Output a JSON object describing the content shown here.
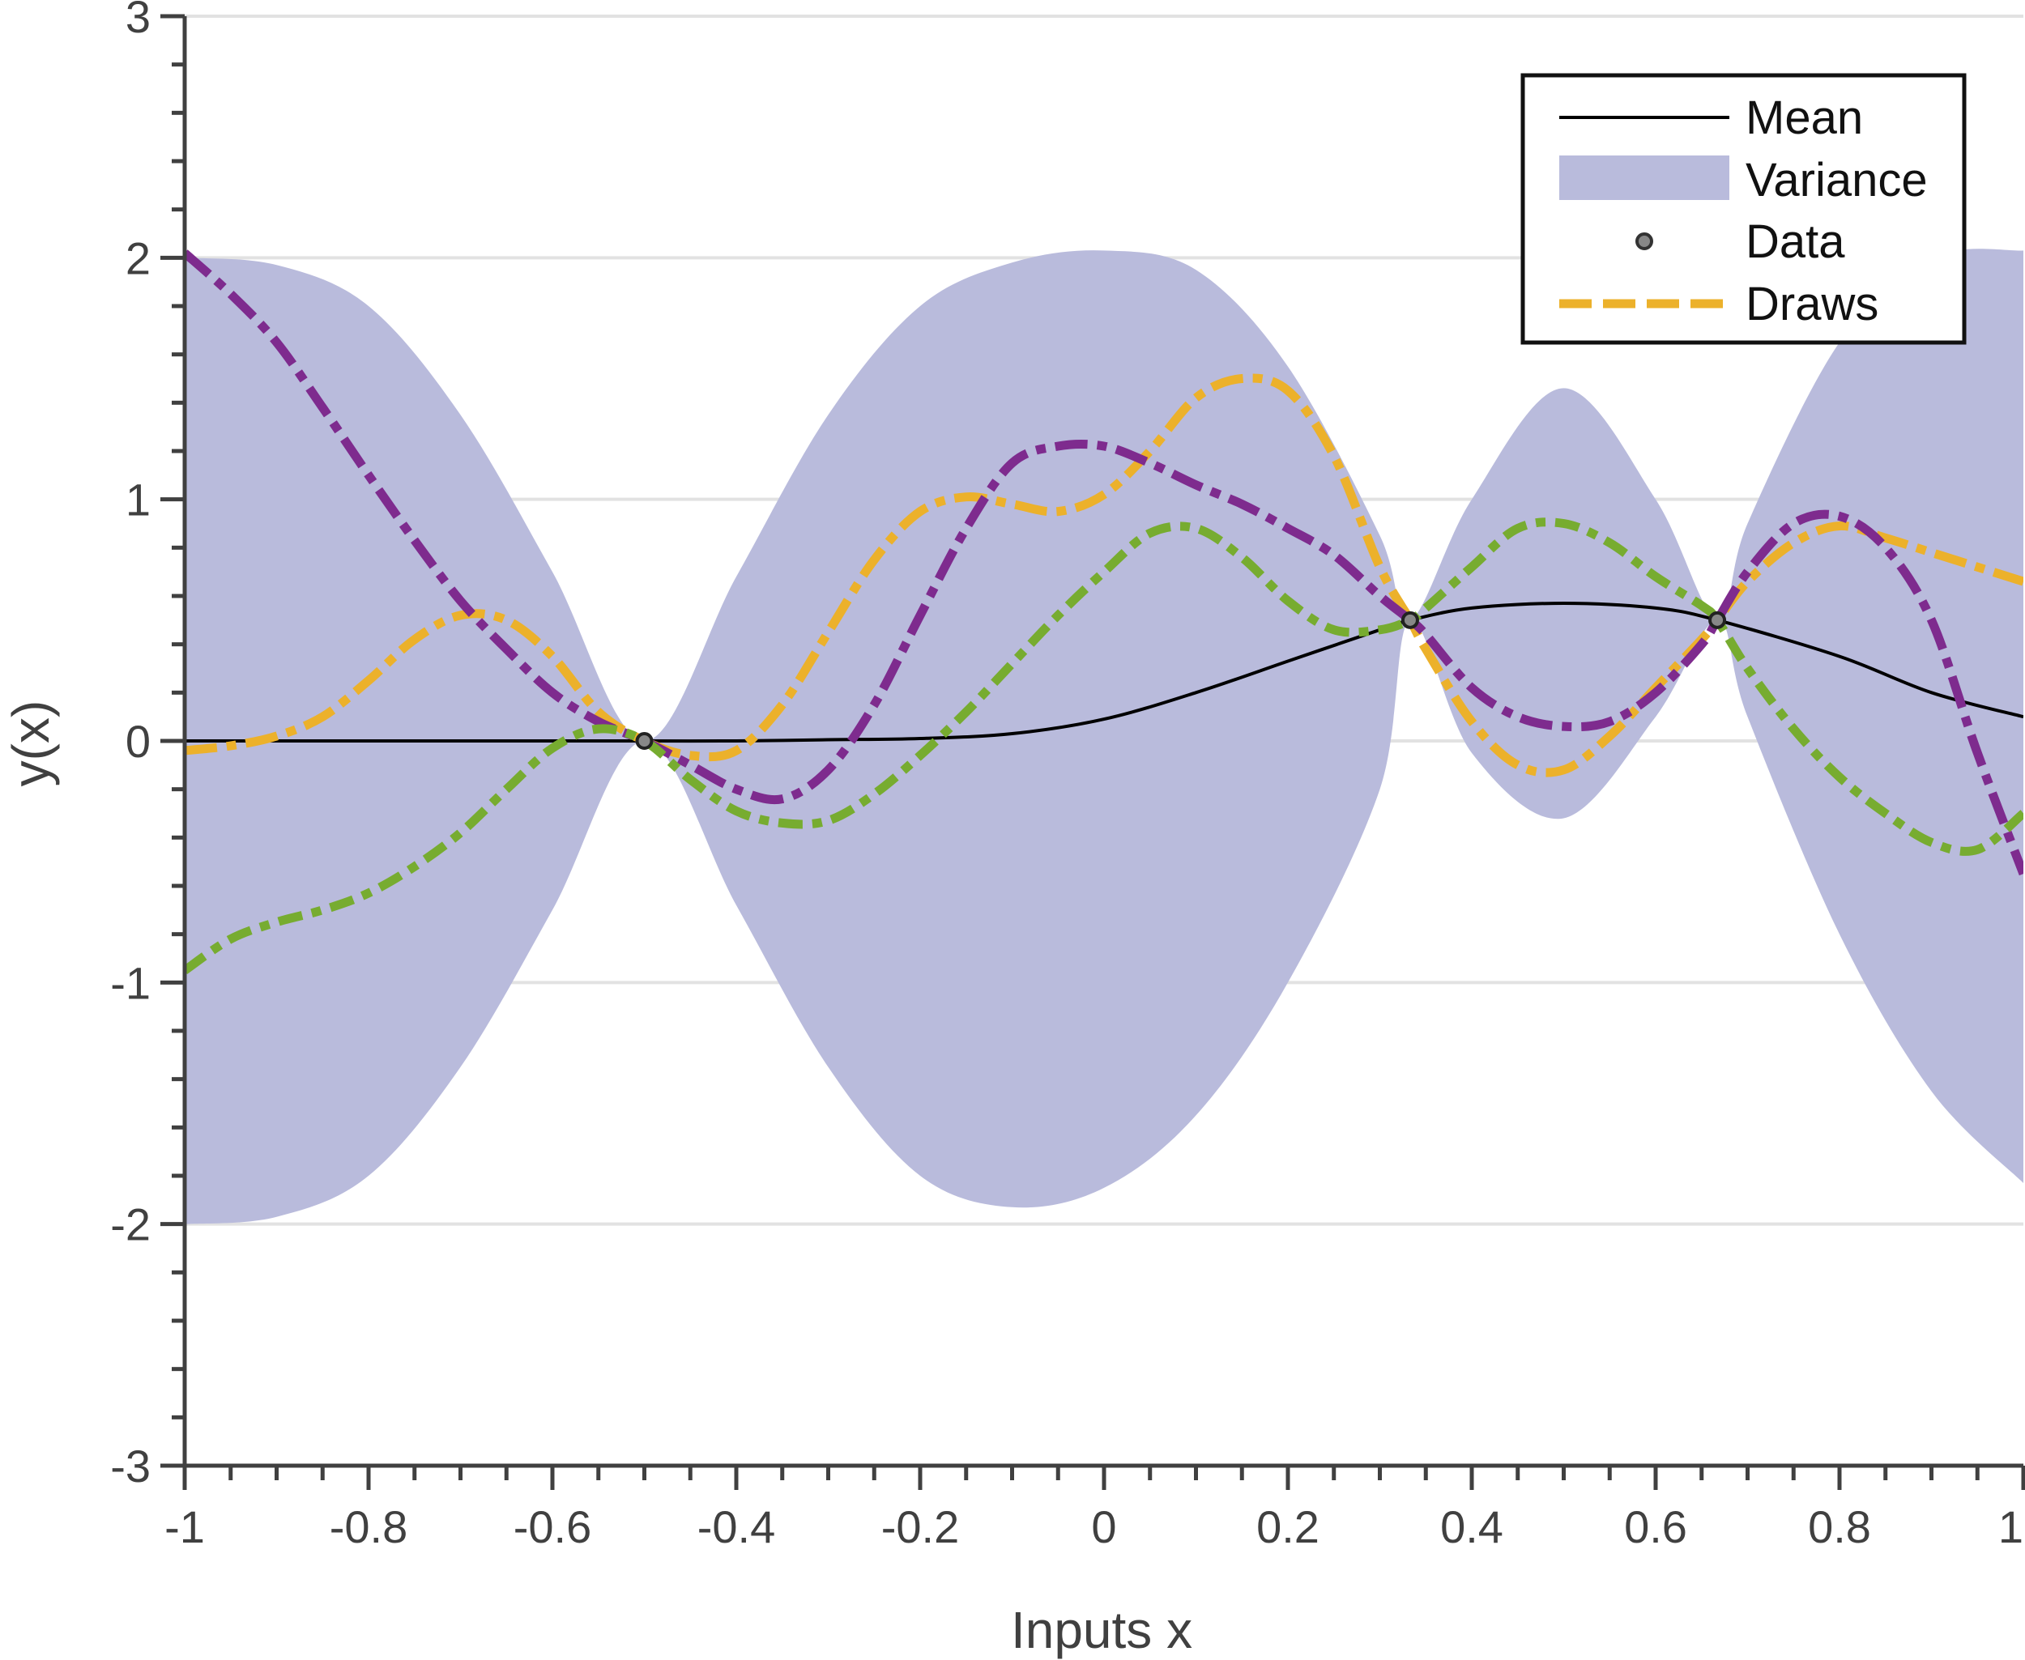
{
  "chart_data": {
    "type": "line",
    "title": "",
    "xlabel": "Inputs x",
    "ylabel": "y(x)",
    "xlim": [
      -1,
      1
    ],
    "ylim": [
      -3,
      3
    ],
    "grid": "horizontal",
    "legend_position": "top-right",
    "x_ticks": [
      -1,
      -0.8,
      -0.6,
      -0.4,
      -0.2,
      0,
      0.2,
      0.4,
      0.6,
      0.8,
      1
    ],
    "x_tick_labels": [
      "-1",
      "-0.8",
      "-0.6",
      "-0.4",
      "-0.2",
      "0",
      "0.2",
      "0.4",
      "0.6",
      "0.8",
      "1"
    ],
    "y_ticks": [
      -3,
      -2,
      -1,
      0,
      1,
      2,
      3
    ],
    "y_tick_labels": [
      "-3",
      "-2",
      "-1",
      "0",
      "1",
      "2",
      "3"
    ],
    "legend": [
      "Mean",
      "Variance",
      "Data",
      "Draws"
    ],
    "colors": {
      "variance": "#b9bbdc",
      "mean": "#000000",
      "draw_yellow": "#ecb12b",
      "draw_purple": "#7e2b8e",
      "draw_green": "#77ac30",
      "grid": "#e2e2e2",
      "axis": "#404040"
    },
    "data_points": [
      {
        "x": -0.5,
        "y": 0
      },
      {
        "x": 0.333,
        "y": 0.5
      },
      {
        "x": 0.667,
        "y": 0.5
      }
    ],
    "mean": {
      "name": "Mean",
      "x": [
        -1,
        -0.8,
        -0.6,
        -0.5,
        -0.4,
        -0.3,
        -0.2,
        -0.1,
        0,
        0.1,
        0.2,
        0.3,
        0.333,
        0.4,
        0.5,
        0.6,
        0.667,
        0.8,
        0.9,
        1
      ],
      "y": [
        0,
        0,
        0,
        0,
        0,
        0.005,
        0.01,
        0.03,
        0.09,
        0.2,
        0.33,
        0.46,
        0.5,
        0.55,
        0.57,
        0.55,
        0.5,
        0.35,
        0.2,
        0.1
      ]
    },
    "variance_band": {
      "name": "Variance",
      "x": [
        -1,
        -0.9,
        -0.8,
        -0.7,
        -0.6,
        -0.5,
        -0.4,
        -0.3,
        -0.2,
        -0.1,
        0,
        0.1,
        0.2,
        0.3,
        0.333,
        0.4,
        0.5,
        0.6,
        0.667,
        0.7,
        0.8,
        0.9,
        1
      ],
      "upper": [
        2.0,
        1.97,
        1.8,
        1.35,
        0.7,
        0,
        0.68,
        1.35,
        1.8,
        1.98,
        2.03,
        1.95,
        1.55,
        0.85,
        0.5,
        1.0,
        1.46,
        1.0,
        0.5,
        0.9,
        1.65,
        2.0,
        2.03
      ],
      "lower": [
        -2.0,
        -1.97,
        -1.8,
        -1.35,
        -0.7,
        0,
        -0.68,
        -1.35,
        -1.8,
        -1.93,
        -1.85,
        -1.55,
        -1.0,
        -0.2,
        0.5,
        -0.05,
        -0.32,
        0.1,
        0.5,
        0.1,
        -0.8,
        -1.45,
        -1.83
      ]
    },
    "draws": [
      {
        "name": "Draws",
        "x": [
          -1,
          -0.95,
          -0.9,
          -0.85,
          -0.8,
          -0.75,
          -0.7,
          -0.65,
          -0.6,
          -0.55,
          -0.5,
          -0.45,
          -0.4,
          -0.35,
          -0.3,
          -0.25,
          -0.2,
          -0.15,
          -0.1,
          -0.05,
          0,
          0.05,
          0.1,
          0.15,
          0.2,
          0.25,
          0.3,
          0.333,
          0.35,
          0.4,
          0.45,
          0.5,
          0.55,
          0.6,
          0.65,
          0.667,
          0.7,
          0.75,
          0.8,
          0.85,
          0.9,
          0.95,
          1
        ],
        "y": [
          -0.04,
          -0.02,
          0.02,
          0.1,
          0.25,
          0.42,
          0.52,
          0.5,
          0.35,
          0.12,
          0,
          -0.06,
          -0.04,
          0.15,
          0.45,
          0.75,
          0.95,
          1.01,
          0.98,
          0.95,
          1.02,
          1.2,
          1.42,
          1.5,
          1.45,
          1.18,
          0.72,
          0.5,
          0.38,
          0.08,
          -0.1,
          -0.12,
          0.02,
          0.22,
          0.42,
          0.5,
          0.66,
          0.82,
          0.89,
          0.84,
          0.78,
          0.72,
          0.66
        ]
      },
      {
        "name": "",
        "x": [
          -1,
          -0.95,
          -0.9,
          -0.85,
          -0.8,
          -0.75,
          -0.7,
          -0.65,
          -0.6,
          -0.55,
          -0.5,
          -0.45,
          -0.4,
          -0.35,
          -0.3,
          -0.25,
          -0.2,
          -0.15,
          -0.1,
          -0.05,
          0,
          0.05,
          0.1,
          0.15,
          0.2,
          0.25,
          0.3,
          0.333,
          0.35,
          0.4,
          0.45,
          0.5,
          0.55,
          0.6,
          0.65,
          0.667,
          0.7,
          0.75,
          0.8,
          0.85,
          0.9,
          0.95,
          1
        ],
        "y": [
          2.02,
          1.85,
          1.65,
          1.38,
          1.1,
          0.83,
          0.58,
          0.38,
          0.2,
          0.08,
          0,
          -0.1,
          -0.2,
          -0.24,
          -0.12,
          0.15,
          0.52,
          0.88,
          1.15,
          1.22,
          1.22,
          1.15,
          1.06,
          0.98,
          0.88,
          0.77,
          0.6,
          0.5,
          0.44,
          0.22,
          0.1,
          0.06,
          0.08,
          0.2,
          0.4,
          0.5,
          0.7,
          0.9,
          0.93,
          0.8,
          0.5,
          -0.05,
          -0.55
        ]
      },
      {
        "name": "",
        "x": [
          -1,
          -0.95,
          -0.9,
          -0.85,
          -0.8,
          -0.75,
          -0.7,
          -0.65,
          -0.6,
          -0.55,
          -0.5,
          -0.45,
          -0.4,
          -0.35,
          -0.3,
          -0.25,
          -0.2,
          -0.15,
          -0.1,
          -0.05,
          0,
          0.05,
          0.1,
          0.15,
          0.2,
          0.25,
          0.3,
          0.333,
          0.35,
          0.4,
          0.45,
          0.5,
          0.55,
          0.6,
          0.65,
          0.667,
          0.7,
          0.75,
          0.8,
          0.85,
          0.9,
          0.95,
          1
        ],
        "y": [
          -0.95,
          -0.82,
          -0.75,
          -0.7,
          -0.63,
          -0.52,
          -0.38,
          -0.2,
          -0.03,
          0.05,
          0,
          -0.16,
          -0.29,
          -0.34,
          -0.33,
          -0.22,
          -0.06,
          0.12,
          0.32,
          0.52,
          0.7,
          0.86,
          0.88,
          0.76,
          0.58,
          0.46,
          0.46,
          0.5,
          0.55,
          0.72,
          0.88,
          0.9,
          0.82,
          0.68,
          0.56,
          0.5,
          0.3,
          0.05,
          -0.15,
          -0.3,
          -0.42,
          -0.45,
          -0.3
        ]
      }
    ]
  }
}
